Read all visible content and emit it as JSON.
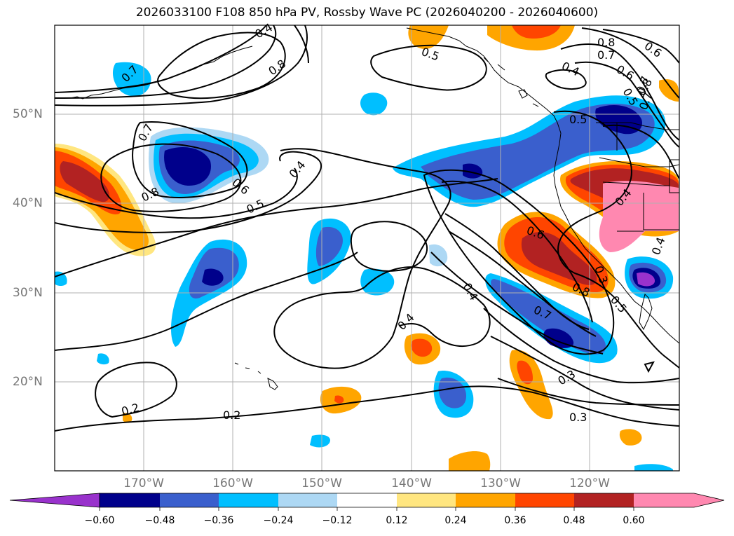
{
  "title": "2026033100 F108 850 hPa PV, Rossby Wave PC (2026040200 - 2026040600)",
  "map": {
    "lon_labels": [
      "170°W",
      "160°W",
      "150°W",
      "140°W",
      "130°W",
      "120°W"
    ],
    "lat_labels": [
      "50°N",
      "40°N",
      "30°N",
      "20°N"
    ],
    "contour_labels": [
      "0.5",
      "0.8",
      "0.7",
      "0.6",
      "0.7",
      "0.8",
      "0.7",
      "0.8",
      "0.5",
      "0.4",
      "0.8",
      "0.7",
      "0.6",
      "0.5",
      "0.4",
      "0.7",
      "0.5",
      "0.4",
      "0.6",
      "0.4",
      "0.3",
      "0.2",
      "0.2",
      "0.6",
      "0.7",
      "0.8",
      "0.4",
      "0.5",
      "0.3",
      "0.4",
      "0.3",
      "0.4"
    ],
    "coastline_color": "#000000",
    "grid": true
  },
  "colorbar": {
    "ticks": [
      "−0.60",
      "−0.48",
      "−0.36",
      "−0.24",
      "−0.12",
      "0.12",
      "0.24",
      "0.36",
      "0.48",
      "0.60"
    ],
    "colors": [
      "#9932cc",
      "#00008b",
      "#3a5fcd",
      "#00bfff",
      "#add8f4",
      "#ffffff",
      "#ffe680",
      "#ffa500",
      "#ff4500",
      "#b22222",
      "#ff88b0"
    ],
    "extend": "both"
  },
  "chart_data": {
    "type": "heatmap",
    "title": "2026033100 F108 850 hPa PV, Rossby Wave PC (2026040200 - 2026040600)",
    "xlim": [
      -180,
      -110
    ],
    "ylim": [
      10,
      60
    ],
    "x_ticks": [
      "170°W",
      "160°W",
      "150°W",
      "140°W",
      "130°W",
      "120°W"
    ],
    "y_ticks": [
      "50°N",
      "40°N",
      "30°N",
      "20°N"
    ],
    "filled_field": "Rossby Wave PC",
    "filled_levels": [
      -0.6,
      -0.48,
      -0.36,
      -0.24,
      -0.12,
      0.12,
      0.24,
      0.36,
      0.48,
      0.6
    ],
    "contour_field": "850 hPa PV",
    "contour_levels": [
      0.2,
      0.3,
      0.4,
      0.5,
      0.6,
      0.7,
      0.8
    ]
  }
}
